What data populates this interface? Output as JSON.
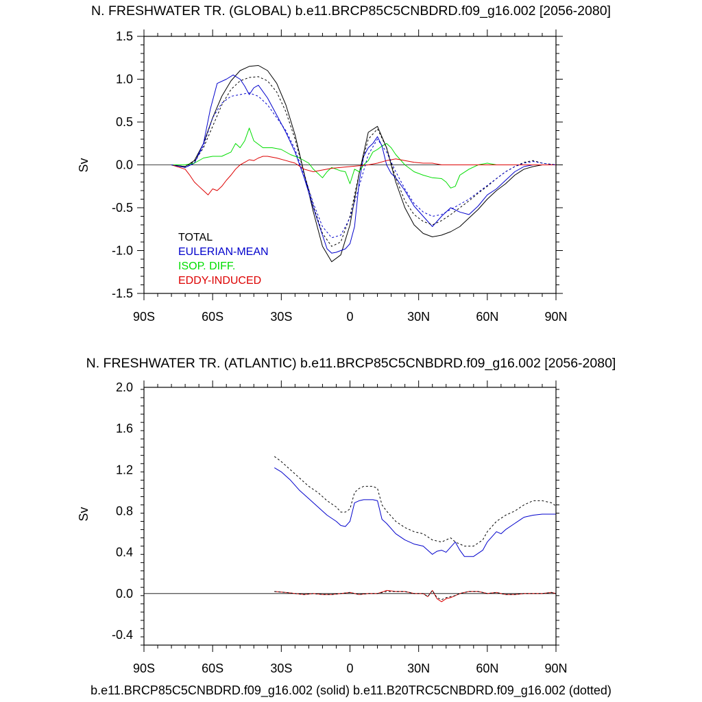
{
  "chart_data": [
    {
      "type": "line",
      "title": "N. FRESHWATER TR. (GLOBAL) b.e11.BRCP85C5CNBDRD.f09_g16.002 [2056-2080]",
      "ylabel": "Sv",
      "xlabel": "",
      "xlim": [
        -90,
        90
      ],
      "ylim": [
        -1.5,
        1.5
      ],
      "xticks": [
        -90,
        -60,
        -30,
        0,
        30,
        60,
        90
      ],
      "xtick_labels": [
        "90S",
        "60S",
        "30S",
        "0",
        "30N",
        "60N",
        "90N"
      ],
      "yticks": [
        -1.5,
        -1.0,
        -0.5,
        0.0,
        0.5,
        1.0,
        1.5
      ],
      "ytick_labels": [
        "-1.5",
        "-1.0",
        "-0.5",
        "0.0",
        "0.5",
        "1.0",
        "1.5"
      ],
      "legend": [
        "TOTAL",
        "EULERIAN-MEAN",
        "ISOP. DIFF.",
        "EDDY-INDUCED"
      ],
      "legend_colors": [
        "#000000",
        "#0000cc",
        "#00dd00",
        "#dd0000"
      ],
      "series": [
        {
          "name": "TOTAL",
          "style": "solid",
          "color": "#000000",
          "x": [
            -78,
            -72,
            -68,
            -64,
            -60,
            -56,
            -52,
            -48,
            -44,
            -40,
            -36,
            -32,
            -28,
            -24,
            -20,
            -16,
            -12,
            -8,
            -4,
            0,
            4,
            8,
            12,
            16,
            20,
            24,
            28,
            32,
            36,
            40,
            44,
            48,
            52,
            56,
            60,
            64,
            68,
            72,
            76,
            80,
            84,
            90
          ],
          "y": [
            0.0,
            -0.02,
            0.05,
            0.25,
            0.55,
            0.8,
            0.98,
            1.1,
            1.15,
            1.16,
            1.1,
            0.95,
            0.7,
            0.35,
            -0.1,
            -0.55,
            -0.95,
            -1.13,
            -1.05,
            -0.7,
            -0.1,
            0.38,
            0.45,
            0.2,
            -0.2,
            -0.5,
            -0.7,
            -0.8,
            -0.84,
            -0.82,
            -0.78,
            -0.72,
            -0.62,
            -0.52,
            -0.4,
            -0.3,
            -0.22,
            -0.12,
            -0.05,
            -0.02,
            0.0,
            0.0
          ]
        },
        {
          "name": "EULERIAN-MEAN",
          "style": "solid",
          "color": "#0000cc",
          "x": [
            -78,
            -72,
            -68,
            -64,
            -61,
            -58,
            -54,
            -51,
            -48,
            -46,
            -44,
            -42,
            -40,
            -36,
            -32,
            -28,
            -24,
            -20,
            -16,
            -12,
            -10,
            -8,
            -6,
            -4,
            -2,
            0,
            2,
            4,
            6,
            8,
            10,
            12,
            14,
            16,
            18,
            20,
            24,
            28,
            32,
            36,
            38,
            40,
            44,
            48,
            52,
            56,
            60,
            64,
            68,
            72,
            76,
            80,
            84,
            90
          ],
          "y": [
            0.0,
            -0.03,
            0.02,
            0.25,
            0.65,
            0.95,
            1.0,
            1.05,
            1.0,
            0.92,
            0.82,
            0.9,
            0.93,
            0.78,
            0.58,
            0.38,
            0.15,
            -0.15,
            -0.5,
            -0.82,
            -0.98,
            -1.03,
            -1.02,
            -1.0,
            -0.98,
            -0.92,
            -0.72,
            -0.2,
            0.1,
            0.2,
            0.25,
            0.33,
            0.22,
            0.0,
            -0.1,
            -0.15,
            -0.3,
            -0.48,
            -0.6,
            -0.72,
            -0.66,
            -0.6,
            -0.5,
            -0.55,
            -0.58,
            -0.48,
            -0.35,
            -0.28,
            -0.18,
            -0.08,
            -0.02,
            0.0,
            0.0,
            0.0
          ]
        },
        {
          "name": "ISOP. DIFF.",
          "style": "solid",
          "color": "#00dd00",
          "x": [
            -78,
            -72,
            -68,
            -64,
            -60,
            -56,
            -52,
            -50,
            -48,
            -46,
            -44,
            -42,
            -38,
            -34,
            -30,
            -26,
            -22,
            -18,
            -16,
            -14,
            -12,
            -10,
            -8,
            -6,
            -4,
            -2,
            0,
            2,
            4,
            6,
            8,
            10,
            12,
            14,
            16,
            18,
            20,
            24,
            28,
            32,
            36,
            40,
            42,
            44,
            46,
            48,
            52,
            56,
            60,
            64,
            68,
            72,
            76,
            80,
            84,
            90
          ],
          "y": [
            0.0,
            0.0,
            0.02,
            0.08,
            0.1,
            0.1,
            0.15,
            0.25,
            0.2,
            0.28,
            0.43,
            0.28,
            0.2,
            0.2,
            0.18,
            0.12,
            0.08,
            0.02,
            -0.05,
            -0.1,
            -0.15,
            -0.08,
            -0.03,
            -0.05,
            -0.07,
            -0.08,
            -0.22,
            -0.05,
            -0.08,
            0.0,
            0.05,
            0.15,
            0.18,
            0.22,
            0.25,
            0.2,
            0.12,
            0.0,
            -0.08,
            -0.12,
            -0.15,
            -0.16,
            -0.2,
            -0.27,
            -0.25,
            -0.12,
            -0.05,
            0.0,
            0.02,
            0.0,
            0.0,
            0.0,
            0.0,
            0.0,
            0.0,
            0.0
          ]
        },
        {
          "name": "EDDY-INDUCED",
          "style": "solid",
          "color": "#dd0000",
          "x": [
            -78,
            -72,
            -70,
            -68,
            -66,
            -64,
            -62,
            -60,
            -58,
            -56,
            -54,
            -52,
            -50,
            -48,
            -46,
            -44,
            -42,
            -40,
            -38,
            -36,
            -32,
            -28,
            -24,
            -20,
            -16,
            -12,
            -8,
            -4,
            0,
            4,
            8,
            12,
            16,
            20,
            24,
            28,
            32,
            36,
            40,
            44,
            48,
            52,
            56,
            60,
            64,
            68,
            72,
            76,
            80,
            84,
            90
          ],
          "y": [
            0.0,
            -0.05,
            -0.12,
            -0.2,
            -0.25,
            -0.3,
            -0.35,
            -0.28,
            -0.3,
            -0.25,
            -0.18,
            -0.12,
            -0.05,
            0.0,
            0.03,
            0.06,
            0.05,
            0.08,
            0.1,
            0.1,
            0.08,
            0.05,
            0.02,
            -0.05,
            -0.08,
            -0.06,
            -0.04,
            -0.03,
            -0.02,
            -0.01,
            0.0,
            0.02,
            0.05,
            0.07,
            0.05,
            0.03,
            0.02,
            0.02,
            0.0,
            0.0,
            0.0,
            0.0,
            0.0,
            0.0,
            0.0,
            0.0,
            0.0,
            0.0,
            0.0,
            0.0,
            0.0
          ]
        },
        {
          "name": "TOTAL (B20TR)",
          "style": "dotted",
          "color": "#000000",
          "x": [
            -78,
            -72,
            -68,
            -64,
            -60,
            -56,
            -52,
            -48,
            -44,
            -40,
            -36,
            -32,
            -28,
            -24,
            -20,
            -16,
            -12,
            -8,
            -4,
            0,
            4,
            8,
            12,
            16,
            20,
            24,
            28,
            32,
            36,
            40,
            44,
            48,
            52,
            56,
            60,
            64,
            68,
            72,
            76,
            80,
            84,
            90
          ],
          "y": [
            0.0,
            -0.02,
            0.04,
            0.2,
            0.45,
            0.7,
            0.88,
            0.98,
            1.02,
            1.03,
            0.98,
            0.85,
            0.62,
            0.3,
            -0.1,
            -0.48,
            -0.8,
            -0.95,
            -0.9,
            -0.6,
            -0.1,
            0.3,
            0.42,
            0.2,
            -0.15,
            -0.42,
            -0.58,
            -0.66,
            -0.7,
            -0.65,
            -0.58,
            -0.5,
            -0.42,
            -0.33,
            -0.25,
            -0.16,
            -0.08,
            -0.02,
            0.03,
            0.05,
            0.02,
            0.0
          ]
        },
        {
          "name": "EULERIAN-MEAN (B20TR)",
          "style": "dotted",
          "color": "#0000cc",
          "x": [
            -78,
            -72,
            -68,
            -64,
            -60,
            -56,
            -52,
            -48,
            -44,
            -40,
            -36,
            -32,
            -28,
            -24,
            -20,
            -16,
            -12,
            -8,
            -4,
            0,
            4,
            8,
            12,
            16,
            20,
            24,
            28,
            32,
            36,
            40,
            44,
            48,
            52,
            56,
            60,
            64,
            68,
            72,
            76,
            80,
            84,
            90
          ],
          "y": [
            0.0,
            -0.03,
            0.02,
            0.22,
            0.55,
            0.72,
            0.8,
            0.82,
            0.84,
            0.8,
            0.7,
            0.55,
            0.4,
            0.18,
            -0.12,
            -0.45,
            -0.72,
            -0.85,
            -0.82,
            -0.62,
            -0.25,
            0.12,
            0.3,
            0.15,
            -0.08,
            -0.28,
            -0.45,
            -0.55,
            -0.6,
            -0.58,
            -0.52,
            -0.46,
            -0.4,
            -0.32,
            -0.24,
            -0.16,
            -0.08,
            -0.02,
            0.02,
            0.04,
            0.02,
            0.0
          ]
        }
      ]
    },
    {
      "type": "line",
      "title": "N. FRESHWATER TR. (ATLANTIC) b.e11.BRCP85C5CNBDRD.f09_g16.002 [2056-2080]",
      "ylabel": "Sv",
      "xlabel": "b.e11.BRCP85C5CNBDRD.f09_g16.002 (solid) b.e11.B20TRC5CNBDRD.f09_g16.002 (dotted)",
      "xlim": [
        -90,
        90
      ],
      "ylim": [
        -0.5,
        2.0
      ],
      "xticks": [
        -90,
        -60,
        -30,
        0,
        30,
        60,
        90
      ],
      "xtick_labels": [
        "90S",
        "60S",
        "30S",
        "0",
        "30N",
        "60N",
        "90N"
      ],
      "yticks": [
        -0.4,
        0.0,
        0.4,
        0.8,
        1.2,
        1.6,
        2.0
      ],
      "ytick_labels": [
        "-0.4",
        "0.0",
        "0.4",
        "0.8",
        "1.2",
        "1.6",
        "2.0"
      ],
      "series": [
        {
          "name": "EULERIAN-MEAN",
          "style": "solid",
          "color": "#0000cc",
          "x": [
            -33,
            -30,
            -26,
            -22,
            -18,
            -14,
            -10,
            -6,
            -4,
            -2,
            0,
            2,
            4,
            6,
            8,
            10,
            12,
            14,
            16,
            20,
            24,
            28,
            32,
            34,
            36,
            38,
            40,
            42,
            44,
            46,
            48,
            50,
            54,
            58,
            60,
            62,
            64,
            66,
            68,
            72,
            76,
            80,
            84,
            88,
            90
          ],
          "y": [
            1.22,
            1.18,
            1.1,
            1.0,
            0.92,
            0.84,
            0.76,
            0.7,
            0.66,
            0.65,
            0.7,
            0.88,
            0.9,
            0.91,
            0.91,
            0.91,
            0.9,
            0.72,
            0.68,
            0.58,
            0.52,
            0.48,
            0.46,
            0.42,
            0.38,
            0.41,
            0.42,
            0.4,
            0.45,
            0.5,
            0.42,
            0.36,
            0.36,
            0.42,
            0.5,
            0.55,
            0.6,
            0.58,
            0.62,
            0.68,
            0.74,
            0.76,
            0.77,
            0.77,
            0.77
          ]
        },
        {
          "name": "EDDY-INDUCED",
          "style": "solid",
          "color": "#dd0000",
          "x": [
            -33,
            -28,
            -24,
            -20,
            -16,
            -12,
            -8,
            -4,
            0,
            4,
            8,
            12,
            16,
            20,
            24,
            28,
            32,
            34,
            36,
            38,
            40,
            42,
            44,
            46,
            48,
            52,
            56,
            60,
            64,
            68,
            72,
            76,
            80,
            84,
            88,
            90
          ],
          "y": [
            0.02,
            0.01,
            0.0,
            -0.01,
            0.0,
            -0.01,
            -0.01,
            0.0,
            0.01,
            -0.01,
            0.0,
            0.0,
            0.03,
            0.02,
            0.02,
            0.0,
            0.0,
            -0.03,
            0.03,
            -0.05,
            -0.08,
            -0.05,
            -0.04,
            -0.02,
            0.0,
            0.02,
            0.02,
            0.0,
            0.01,
            -0.01,
            -0.01,
            0.0,
            0.0,
            0.0,
            0.01,
            0.0
          ]
        },
        {
          "name": "EULERIAN-MEAN (B20TR)",
          "style": "dotted",
          "color": "#000000",
          "x": [
            -33,
            -30,
            -26,
            -22,
            -18,
            -14,
            -10,
            -6,
            -4,
            -2,
            0,
            2,
            4,
            6,
            8,
            10,
            12,
            14,
            16,
            20,
            24,
            28,
            32,
            36,
            40,
            44,
            46,
            48,
            50,
            54,
            58,
            60,
            64,
            68,
            72,
            76,
            80,
            84,
            88,
            90
          ],
          "y": [
            1.33,
            1.28,
            1.2,
            1.12,
            1.04,
            0.98,
            0.9,
            0.84,
            0.79,
            0.79,
            0.82,
            0.98,
            1.02,
            1.04,
            1.04,
            1.04,
            1.02,
            0.86,
            0.8,
            0.7,
            0.64,
            0.6,
            0.58,
            0.52,
            0.5,
            0.54,
            0.5,
            0.48,
            0.46,
            0.46,
            0.52,
            0.6,
            0.7,
            0.76,
            0.8,
            0.86,
            0.9,
            0.9,
            0.88,
            0.85
          ]
        },
        {
          "name": "EDDY-INDUCED (B20TR)",
          "style": "dotted",
          "color": "#000000",
          "x": [
            -33,
            -28,
            -24,
            -20,
            -16,
            -12,
            -8,
            -4,
            0,
            4,
            8,
            12,
            16,
            20,
            24,
            28,
            32,
            34,
            36,
            38,
            40,
            42,
            44,
            46,
            48,
            52,
            56,
            60,
            64,
            68,
            72,
            76,
            80,
            84,
            88,
            90
          ],
          "y": [
            0.02,
            0.01,
            0.0,
            -0.01,
            0.0,
            -0.01,
            -0.01,
            0.0,
            0.01,
            -0.01,
            0.0,
            0.0,
            0.02,
            0.02,
            0.02,
            0.0,
            0.0,
            -0.03,
            0.03,
            -0.04,
            -0.06,
            -0.04,
            -0.03,
            -0.02,
            0.0,
            0.02,
            0.02,
            0.0,
            0.01,
            -0.01,
            -0.01,
            0.0,
            0.0,
            0.0,
            0.01,
            0.0
          ]
        }
      ]
    }
  ]
}
